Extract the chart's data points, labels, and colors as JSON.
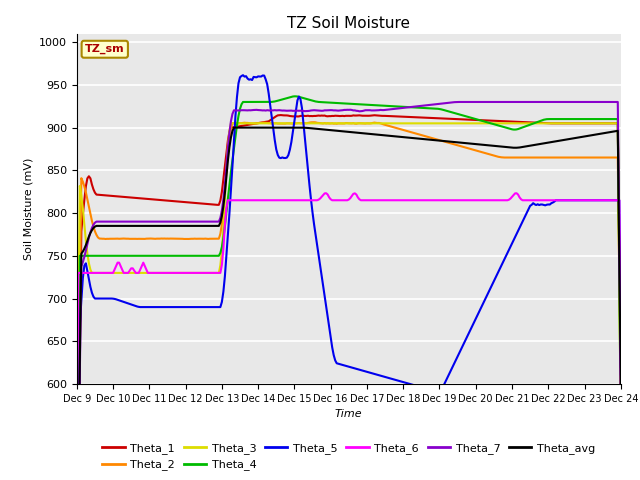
{
  "title": "TZ Soil Moisture",
  "ylabel": "Soil Moisture (mV)",
  "xlabel": "Time",
  "ylim": [
    600,
    1010
  ],
  "xlim": [
    0,
    360
  ],
  "bg_color": "#ffffff",
  "plot_bg_color": "#e8e8e8",
  "legend_label": "TZ_sm",
  "series": {
    "Theta_1": {
      "color": "#cc0000"
    },
    "Theta_2": {
      "color": "#ff8800"
    },
    "Theta_3": {
      "color": "#dddd00"
    },
    "Theta_4": {
      "color": "#00bb00"
    },
    "Theta_5": {
      "color": "#0000ee"
    },
    "Theta_6": {
      "color": "#ff00ff"
    },
    "Theta_7": {
      "color": "#8800cc"
    },
    "Theta_avg": {
      "color": "#000000"
    }
  },
  "xtick_labels": [
    "Dec 9",
    "Dec 10",
    "Dec 11",
    "Dec 12",
    "Dec 13",
    "Dec 14",
    "Dec 15",
    "Dec 16",
    "Dec 17",
    "Dec 18",
    "Dec 19",
    "Dec 20",
    "Dec 21",
    "Dec 22",
    "Dec 23",
    "Dec 24"
  ],
  "xtick_positions": [
    0,
    24,
    48,
    72,
    96,
    120,
    144,
    168,
    192,
    216,
    240,
    264,
    288,
    312,
    336,
    360
  ],
  "yticks": [
    600,
    650,
    700,
    750,
    800,
    850,
    900,
    950,
    1000
  ]
}
